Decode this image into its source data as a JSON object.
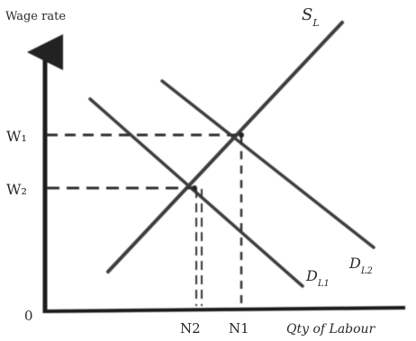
{
  "diagram": {
    "y_axis_label": "Wage rate",
    "x_axis_label": "Qty of Labour",
    "origin_label": "0",
    "wage_labels": {
      "upper": "W₁",
      "lower": "W₂"
    },
    "quantity_labels": {
      "left": "N2",
      "right": "N1"
    },
    "curve_labels": {
      "supply": "S",
      "supply_sub": "L",
      "demand_steep": "D",
      "demand_steep_sub": "L1",
      "demand_flat": "D",
      "demand_flat_sub": "L2"
    }
  }
}
